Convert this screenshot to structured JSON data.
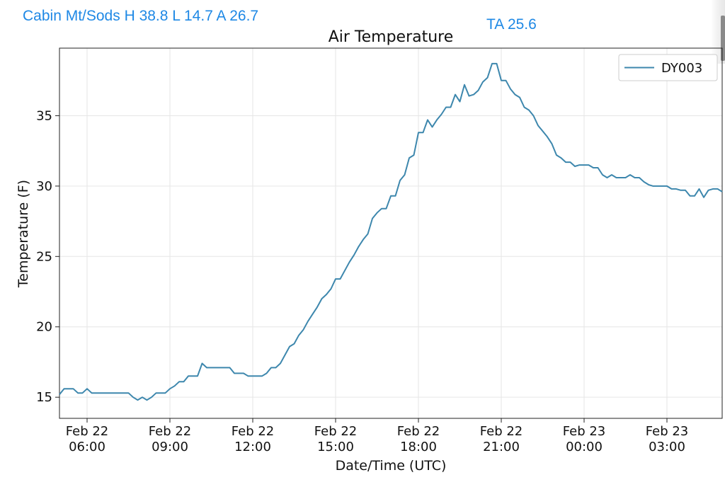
{
  "header": {
    "station_summary": "Cabin Mt/Sods H 38.8 L 14.7 A 26.7",
    "ta_label": "TA 25.6"
  },
  "colors": {
    "header_text": "#1e88e5",
    "series_line": "#3d87ad",
    "grid": "#e6e6e6"
  },
  "chart_data": {
    "type": "line",
    "title": "Air Temperature",
    "xlabel": "Date/Time (UTC)",
    "ylabel": "Temperature (F)",
    "ylim": [
      13.5,
      39.8
    ],
    "xlim": [
      "2023-02-22T05:00",
      "2023-02-23T05:00"
    ],
    "yticks": [
      15,
      20,
      25,
      30,
      35
    ],
    "xticks": [
      {
        "t": "2023-02-22T06:00",
        "label1": "Feb 22",
        "label2": "06:00"
      },
      {
        "t": "2023-02-22T09:00",
        "label1": "Feb 22",
        "label2": "09:00"
      },
      {
        "t": "2023-02-22T12:00",
        "label1": "Feb 22",
        "label2": "12:00"
      },
      {
        "t": "2023-02-22T15:00",
        "label1": "Feb 22",
        "label2": "15:00"
      },
      {
        "t": "2023-02-22T18:00",
        "label1": "Feb 22",
        "label2": "18:00"
      },
      {
        "t": "2023-02-22T21:00",
        "label1": "Feb 22",
        "label2": "21:00"
      },
      {
        "t": "2023-02-23T00:00",
        "label1": "Feb 23",
        "label2": "00:00"
      },
      {
        "t": "2023-02-23T03:00",
        "label1": "Feb 23",
        "label2": "03:00"
      }
    ],
    "grid": true,
    "legend_position": "top-right",
    "series": [
      {
        "name": "DY003",
        "x": [
          "2023-02-22T05:00",
          "2023-02-22T05:10",
          "2023-02-22T05:20",
          "2023-02-22T05:30",
          "2023-02-22T05:40",
          "2023-02-22T05:50",
          "2023-02-22T06:00",
          "2023-02-22T06:10",
          "2023-02-22T06:20",
          "2023-02-22T06:30",
          "2023-02-22T06:40",
          "2023-02-22T06:50",
          "2023-02-22T07:00",
          "2023-02-22T07:10",
          "2023-02-22T07:20",
          "2023-02-22T07:30",
          "2023-02-22T07:40",
          "2023-02-22T07:50",
          "2023-02-22T08:00",
          "2023-02-22T08:10",
          "2023-02-22T08:20",
          "2023-02-22T08:30",
          "2023-02-22T08:40",
          "2023-02-22T08:50",
          "2023-02-22T09:00",
          "2023-02-22T09:10",
          "2023-02-22T09:20",
          "2023-02-22T09:30",
          "2023-02-22T09:40",
          "2023-02-22T09:50",
          "2023-02-22T10:00",
          "2023-02-22T10:10",
          "2023-02-22T10:20",
          "2023-02-22T10:30",
          "2023-02-22T10:40",
          "2023-02-22T10:50",
          "2023-02-22T11:00",
          "2023-02-22T11:10",
          "2023-02-22T11:20",
          "2023-02-22T11:30",
          "2023-02-22T11:40",
          "2023-02-22T11:50",
          "2023-02-22T12:00",
          "2023-02-22T12:10",
          "2023-02-22T12:20",
          "2023-02-22T12:30",
          "2023-02-22T12:40",
          "2023-02-22T12:50",
          "2023-02-22T13:00",
          "2023-02-22T13:10",
          "2023-02-22T13:20",
          "2023-02-22T13:30",
          "2023-02-22T13:40",
          "2023-02-22T13:50",
          "2023-02-22T14:00",
          "2023-02-22T14:10",
          "2023-02-22T14:20",
          "2023-02-22T14:30",
          "2023-02-22T14:40",
          "2023-02-22T14:50",
          "2023-02-22T15:00",
          "2023-02-22T15:10",
          "2023-02-22T15:20",
          "2023-02-22T15:30",
          "2023-02-22T15:40",
          "2023-02-22T15:50",
          "2023-02-22T16:00",
          "2023-02-22T16:10",
          "2023-02-22T16:20",
          "2023-02-22T16:30",
          "2023-02-22T16:40",
          "2023-02-22T16:50",
          "2023-02-22T17:00",
          "2023-02-22T17:10",
          "2023-02-22T17:20",
          "2023-02-22T17:30",
          "2023-02-22T17:40",
          "2023-02-22T17:50",
          "2023-02-22T18:00",
          "2023-02-22T18:10",
          "2023-02-22T18:20",
          "2023-02-22T18:30",
          "2023-02-22T18:40",
          "2023-02-22T18:50",
          "2023-02-22T19:00",
          "2023-02-22T19:10",
          "2023-02-22T19:20",
          "2023-02-22T19:30",
          "2023-02-22T19:40",
          "2023-02-22T19:50",
          "2023-02-22T20:00",
          "2023-02-22T20:10",
          "2023-02-22T20:20",
          "2023-02-22T20:30",
          "2023-02-22T20:40",
          "2023-02-22T20:50",
          "2023-02-22T21:00",
          "2023-02-22T21:10",
          "2023-02-22T21:20",
          "2023-02-22T21:30",
          "2023-02-22T21:40",
          "2023-02-22T21:50",
          "2023-02-22T22:00",
          "2023-02-22T22:10",
          "2023-02-22T22:20",
          "2023-02-22T22:30",
          "2023-02-22T22:40",
          "2023-02-22T22:50",
          "2023-02-22T23:00",
          "2023-02-22T23:10",
          "2023-02-22T23:20",
          "2023-02-22T23:30",
          "2023-02-22T23:40",
          "2023-02-22T23:50",
          "2023-02-23T00:00",
          "2023-02-23T00:10",
          "2023-02-23T00:20",
          "2023-02-23T00:30",
          "2023-02-23T00:40",
          "2023-02-23T00:50",
          "2023-02-23T01:00",
          "2023-02-23T01:10",
          "2023-02-23T01:20",
          "2023-02-23T01:30",
          "2023-02-23T01:40",
          "2023-02-23T01:50",
          "2023-02-23T02:00",
          "2023-02-23T02:10",
          "2023-02-23T02:20",
          "2023-02-23T02:30",
          "2023-02-23T02:40",
          "2023-02-23T02:50",
          "2023-02-23T03:00",
          "2023-02-23T03:10",
          "2023-02-23T03:20",
          "2023-02-23T03:30",
          "2023-02-23T03:40",
          "2023-02-23T03:50",
          "2023-02-23T04:00",
          "2023-02-23T04:10",
          "2023-02-23T04:20",
          "2023-02-23T04:30",
          "2023-02-23T04:40",
          "2023-02-23T04:50",
          "2023-02-23T05:00"
        ],
        "y": [
          15.2,
          15.6,
          15.6,
          15.6,
          15.3,
          15.3,
          15.6,
          15.3,
          15.3,
          15.3,
          15.3,
          15.3,
          15.3,
          15.3,
          15.3,
          15.3,
          15.0,
          14.8,
          15.0,
          14.8,
          15.0,
          15.3,
          15.3,
          15.3,
          15.6,
          15.8,
          16.1,
          16.1,
          16.5,
          16.5,
          16.5,
          17.4,
          17.1,
          17.1,
          17.1,
          17.1,
          17.1,
          17.1,
          16.7,
          16.7,
          16.7,
          16.5,
          16.5,
          16.5,
          16.5,
          16.7,
          17.1,
          17.1,
          17.4,
          18.0,
          18.6,
          18.8,
          19.4,
          19.8,
          20.4,
          20.9,
          21.4,
          22.0,
          22.3,
          22.7,
          23.4,
          23.4,
          24.0,
          24.6,
          25.1,
          25.7,
          26.2,
          26.6,
          27.7,
          28.1,
          28.4,
          28.4,
          29.3,
          29.3,
          30.4,
          30.8,
          32.0,
          32.2,
          33.8,
          33.8,
          34.7,
          34.2,
          34.7,
          35.1,
          35.6,
          35.6,
          36.5,
          36.0,
          37.2,
          36.4,
          36.5,
          36.8,
          37.4,
          37.7,
          38.7,
          38.7,
          37.5,
          37.5,
          36.9,
          36.5,
          36.3,
          35.6,
          35.4,
          35.0,
          34.3,
          33.9,
          33.5,
          33.0,
          32.2,
          32.0,
          31.7,
          31.7,
          31.4,
          31.5,
          31.5,
          31.5,
          31.3,
          31.3,
          30.8,
          30.6,
          30.8,
          30.6,
          30.6,
          30.6,
          30.8,
          30.6,
          30.6,
          30.3,
          30.1,
          30.0,
          30.0,
          30.0,
          30.0,
          29.8,
          29.8,
          29.7,
          29.7,
          29.3,
          29.3,
          29.8,
          29.2,
          29.7,
          29.8,
          29.8,
          29.6
        ]
      }
    ]
  }
}
